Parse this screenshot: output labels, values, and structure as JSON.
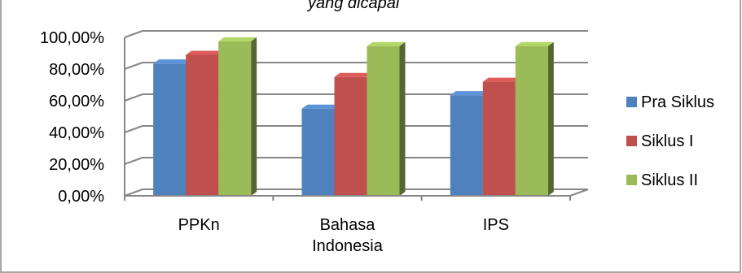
{
  "title_fragment": "yang dicapai",
  "chart_data": {
    "type": "bar",
    "categories": [
      "PPKn",
      "Bahasa Indonesia",
      "IPS"
    ],
    "category_lines": [
      [
        "PPKn"
      ],
      [
        "Bahasa",
        "Indonesia"
      ],
      [
        "IPS"
      ]
    ],
    "series": [
      {
        "name": "Pra Siklus",
        "values": [
          83.5,
          55.0,
          63.5
        ],
        "color": "#4f81bd"
      },
      {
        "name": "Siklus I",
        "values": [
          89.0,
          75.0,
          72.0
        ],
        "color": "#c0504d"
      },
      {
        "name": "Siklus II",
        "values": [
          97.5,
          94.5,
          94.5
        ],
        "color": "#9bbb59"
      }
    ],
    "ylim": [
      0,
      100
    ],
    "yticks": [
      "0,00%",
      "20,00%",
      "40,00%",
      "60,00%",
      "80,00%",
      "100,00%"
    ],
    "grid": true,
    "legend_position": "right"
  }
}
